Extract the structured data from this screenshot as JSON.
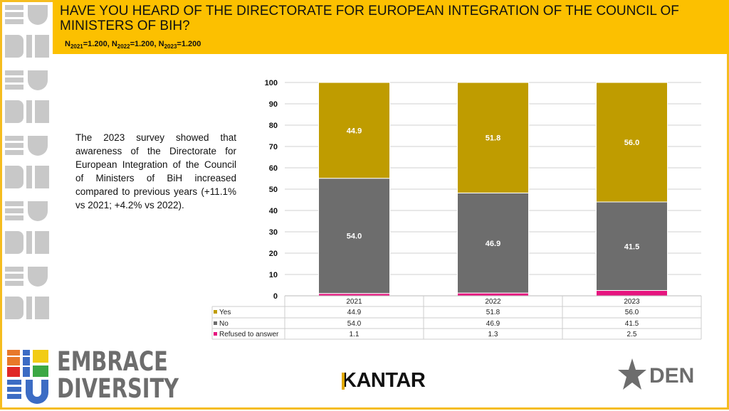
{
  "header": {
    "title": "HAVE YOU HEARD OF THE DIRECTORATE FOR EUROPEAN INTEGRATION OF THE COUNCIL OF MINISTERS OF BIH?",
    "n_parts": [
      {
        "sub": "2021",
        "value": "=1.200, "
      },
      {
        "sub": "2022",
        "value": "=1.200, "
      },
      {
        "sub": "2023",
        "value": "=1.200"
      }
    ],
    "n_letter": "N"
  },
  "body_text": "The 2023 survey showed that awareness of the Directorate for European Integration of the Council of Ministers of BiH increased compared to previous years (+11.1% vs 2021; +4.2% vs 2022).",
  "logos": {
    "embrace": [
      "EMBRACE",
      "DIVERSITY"
    ],
    "kantar": "KANTAR",
    "den": "DEN"
  },
  "chart_data": {
    "type": "bar",
    "stacked": true,
    "categories": [
      "2021",
      "2022",
      "2023"
    ],
    "series": [
      {
        "name": "Refused to answer",
        "values": [
          1.1,
          1.3,
          2.5
        ],
        "color": "#e6157f"
      },
      {
        "name": "No",
        "values": [
          54.0,
          46.9,
          41.5
        ],
        "color": "#6d6d6d"
      },
      {
        "name": "Yes",
        "values": [
          44.9,
          51.8,
          56.0
        ],
        "color": "#bf9c00"
      }
    ],
    "ylim": [
      0,
      100
    ],
    "yticks": [
      0,
      10,
      20,
      30,
      40,
      50,
      60,
      70,
      80,
      90,
      100
    ],
    "grid": true,
    "data_table": true
  }
}
